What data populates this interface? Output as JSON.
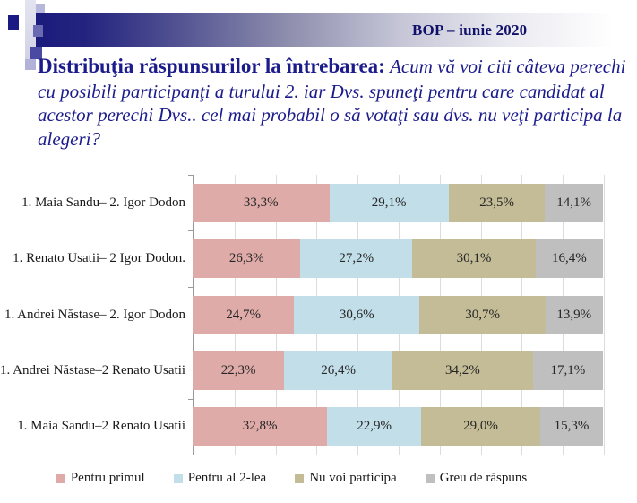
{
  "header": {
    "title": "BOP – iunie 2020"
  },
  "title": {
    "lead": "Distribuţia răspunsurilor la întrebarea:",
    "question": "Acum vă voi citi câteva perechi cu posibili participanţi a turului 2. iar Dvs. spuneţi pentru care candidat al acestor perechi Dvs.. cel mai probabil o să votaţi sau dvs. nu veţi participa la alegeri?"
  },
  "chart_data": {
    "type": "bar",
    "stacked": true,
    "orientation": "horizontal",
    "unit": "%",
    "xlim": [
      0,
      100
    ],
    "grid_step": 10,
    "grid": true,
    "legend_position": "bottom",
    "decimal_separator": ",",
    "categories": [
      "1. Maia Sandu– 2. Igor Dodon",
      "1. Renato Usatii– 2 Igor Dodon.",
      "1. Andrei Năstase– 2. Igor Dodon",
      "1. Andrei Năstase–2 Renato Usatii",
      "1. Maia Sandu–2 Renato Usatii"
    ],
    "series": [
      {
        "name": "Pentru primul",
        "color": "#dfaba8",
        "values": [
          33.3,
          26.3,
          24.7,
          22.3,
          32.8
        ]
      },
      {
        "name": "Pentru al 2-lea",
        "color": "#c2dfe9",
        "values": [
          29.1,
          27.2,
          30.6,
          26.4,
          22.9
        ]
      },
      {
        "name": "Nu voi participa",
        "color": "#c3bc96",
        "values": [
          23.5,
          30.1,
          30.7,
          34.2,
          29.0
        ]
      },
      {
        "name": "Greu de răspuns",
        "color": "#bfbfbf",
        "values": [
          14.1,
          16.4,
          13.9,
          17.1,
          15.3
        ]
      }
    ]
  }
}
